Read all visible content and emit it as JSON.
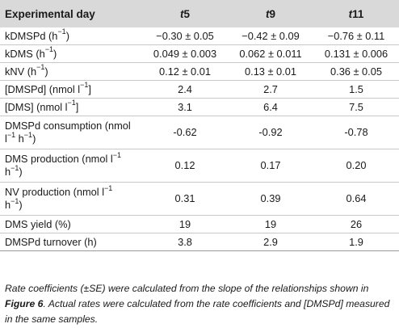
{
  "table": {
    "header": {
      "label": "Experimental day",
      "cols": [
        {
          "prefix": "t",
          "num": "5"
        },
        {
          "prefix": "t",
          "num": "9"
        },
        {
          "prefix": "t",
          "num": "11"
        }
      ]
    },
    "rows": [
      {
        "label": "kDMSPd (h",
        "sup": "−1",
        "after": ")",
        "v": [
          "−0.30 ± 0.05",
          "−0.42 ± 0.09",
          "−0.76 ± 0.11"
        ]
      },
      {
        "label": "kDMS (h",
        "sup": "−1",
        "after": ")",
        "v": [
          "0.049 ± 0.003",
          "0.062 ± 0.011",
          "0.131 ± 0.006"
        ]
      },
      {
        "label": "kNV (h",
        "sup": "−1",
        "after": ")",
        "v": [
          "0.12 ± 0.01",
          "0.13 ± 0.01",
          "0.36 ± 0.05"
        ]
      },
      {
        "label": "[DMSPd] (nmol l",
        "sup": "−1",
        "after": "]",
        "v": [
          "2.4",
          "2.7",
          "1.5"
        ]
      },
      {
        "label": "[DMS] (nmol l",
        "sup": "−1",
        "after": "]",
        "v": [
          "3.1",
          "6.4",
          "7.5"
        ]
      }
    ],
    "rows2": [
      {
        "line1": "DMSPd consumption (nmol",
        "line2a": "l",
        "sup1": "−1",
        "line2b": " h",
        "sup2": "−1",
        "line2c": ")",
        "v": [
          "-0.62",
          "-0.92",
          "-0.78"
        ]
      },
      {
        "line1a": "DMS production (nmol l",
        "sup1": "−1",
        "line2a": "h",
        "sup2": "−1",
        "line2b": ")",
        "v": [
          "0.12",
          "0.17",
          "0.20"
        ]
      },
      {
        "line1a": "NV production (nmol l",
        "sup1": "−1",
        "line2a": "h",
        "sup2": "−1",
        "line2b": ")",
        "v": [
          "0.31",
          "0.39",
          "0.64"
        ]
      }
    ],
    "rows3": [
      {
        "label": "DMS yield (%)",
        "v": [
          "19",
          "19",
          "26"
        ]
      },
      {
        "label": "DMSPd turnover (h)",
        "v": [
          "3.8",
          "2.9",
          "1.9"
        ]
      }
    ]
  },
  "caption": {
    "part1": "Rate coefficients (±SE) were calculated from the slope of the relationships shown in ",
    "figure_ref": "Figure 6",
    "part2": ". Actual rates were calculated from the rate coefficients and [DMSPd] measured in the same samples."
  }
}
